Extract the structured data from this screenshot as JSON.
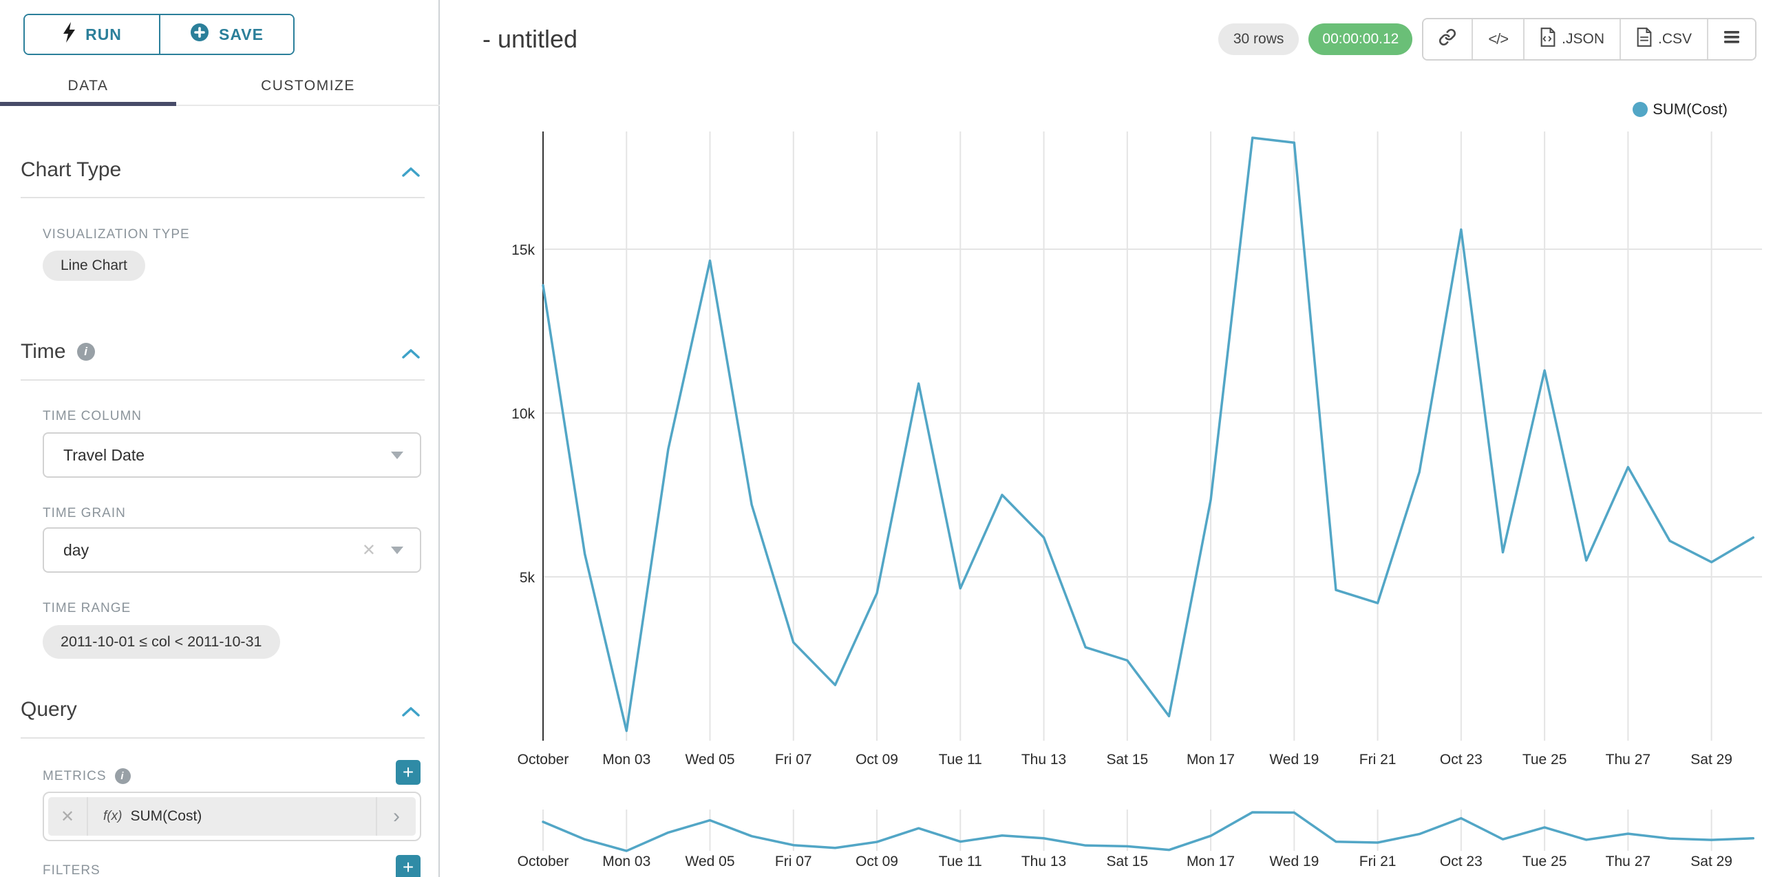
{
  "accent_teal": "#2b7f9a",
  "plus_button_teal": "#2f8ba6",
  "timer_green": "#6abf77",
  "tab_underline_navy": "#474b68",
  "sidebar": {
    "run_label": "RUN",
    "save_label": "SAVE",
    "tabs": [
      {
        "label": "DATA",
        "active": true
      },
      {
        "label": "CUSTOMIZE",
        "active": false
      }
    ],
    "chart_type": {
      "title": "Chart Type",
      "viz_type_label": "VISUALIZATION TYPE",
      "viz_type_value": "Line Chart"
    },
    "time": {
      "title": "Time",
      "time_column_label": "TIME COLUMN",
      "time_column_value": "Travel Date",
      "time_grain_label": "TIME GRAIN",
      "time_grain_value": "day",
      "time_range_label": "TIME RANGE",
      "time_range_value": "2011-10-01 ≤ col < 2011-10-31"
    },
    "query": {
      "title": "Query",
      "metrics_label": "METRICS",
      "metric_fx": "f(x)",
      "metric_value": "SUM(Cost)",
      "filters_label": "FILTERS"
    }
  },
  "header": {
    "title": "- untitled",
    "rows_badge": "30 rows",
    "timer_badge": "00:00:00.12",
    "export_json_label": ".JSON",
    "export_csv_label": ".CSV"
  },
  "icons": {
    "plus": "+",
    "clear": "✕",
    "chevron_right": "›",
    "code": "</>"
  },
  "chart_data": {
    "type": "line",
    "title": "- untitled",
    "legend_entries": [
      "SUM(Cost)"
    ],
    "legend_position": "top-right",
    "grid": true,
    "ylim": [
      0,
      18600
    ],
    "yticks": [
      {
        "label": "5k",
        "value": 5000
      },
      {
        "label": "10k",
        "value": 10000
      },
      {
        "label": "15k",
        "value": 15000
      }
    ],
    "x_tick_labels": [
      "October",
      "Mon 03",
      "Wed 05",
      "Fri 07",
      "Oct 09",
      "Tue 11",
      "Thu 13",
      "Sat 15",
      "Mon 17",
      "Wed 19",
      "Fri 21",
      "Oct 23",
      "Tue 25",
      "Thu 27",
      "Sat 29"
    ],
    "x_tick_indices": [
      0,
      2,
      4,
      6,
      8,
      10,
      12,
      14,
      16,
      18,
      20,
      22,
      24,
      26,
      28
    ],
    "has_context_mini_chart": true,
    "series": [
      {
        "name": "SUM(Cost)",
        "color": "#52a6c6",
        "x": [
          "2011-10-01",
          "2011-10-02",
          "2011-10-03",
          "2011-10-04",
          "2011-10-05",
          "2011-10-06",
          "2011-10-07",
          "2011-10-08",
          "2011-10-09",
          "2011-10-10",
          "2011-10-11",
          "2011-10-12",
          "2011-10-13",
          "2011-10-14",
          "2011-10-15",
          "2011-10-16",
          "2011-10-17",
          "2011-10-18",
          "2011-10-19",
          "2011-10-20",
          "2011-10-21",
          "2011-10-22",
          "2011-10-23",
          "2011-10-24",
          "2011-10-25",
          "2011-10-26",
          "2011-10-27",
          "2011-10-28",
          "2011-10-29",
          "2011-10-30"
        ],
        "values": [
          13900,
          5700,
          300,
          8900,
          14650,
          7200,
          3000,
          1700,
          4500,
          10900,
          4650,
          7500,
          6200,
          2850,
          2450,
          750,
          7350,
          18400,
          18250,
          4600,
          4200,
          8200,
          15600,
          5750,
          11300,
          5500,
          8350,
          6100,
          5450,
          6200
        ]
      }
    ]
  }
}
